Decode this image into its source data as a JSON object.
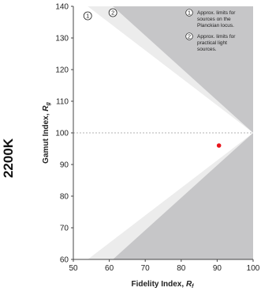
{
  "chart_data": {
    "type": "scatter",
    "side_label": "2200K",
    "xlabel": {
      "main": "Fidelity Index, ",
      "italic": "R",
      "sub": "f"
    },
    "ylabel": {
      "main": "Gamut Index, ",
      "italic": "R",
      "sub": "g"
    },
    "xlim": [
      50,
      100
    ],
    "ylim": [
      60,
      140
    ],
    "xticks": [
      "50",
      "60",
      "70",
      "80",
      "90",
      "100"
    ],
    "yticks": [
      "60",
      "70",
      "80",
      "90",
      "100",
      "110",
      "120",
      "130",
      "140"
    ],
    "reference_line_y": 100,
    "points": [
      {
        "x": 90.5,
        "y": 96,
        "color": "#e8141b"
      }
    ],
    "regions": {
      "inner_limit_left_top": [
        54,
        140
      ],
      "inner_limit_left_bottom": [
        54,
        60
      ],
      "outer_limit_left_top": [
        61,
        140
      ],
      "outer_limit_left_bottom": [
        61,
        60
      ],
      "apex": [
        100,
        100
      ]
    },
    "region_markers": [
      {
        "num": "1",
        "x": 54,
        "y": 137
      },
      {
        "num": "2",
        "x": 61,
        "y": 138
      }
    ],
    "notes": [
      {
        "num": "1",
        "lines": [
          "Approx. limits for",
          "sources on the",
          "Planckian locus."
        ]
      },
      {
        "num": "2",
        "lines": [
          "Approx. limits for",
          "practical light",
          "sources."
        ]
      }
    ],
    "colors": {
      "outside": "#c6c6c8",
      "practical_band": "#ececec",
      "planckian": "#ffffff",
      "point": "#e8141b",
      "axis": "#444444"
    }
  }
}
